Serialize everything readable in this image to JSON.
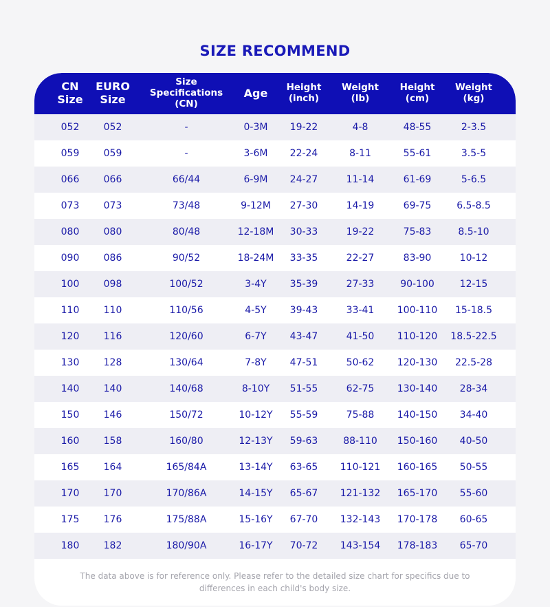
{
  "title": "SIZE RECOMMEND",
  "colors": {
    "header_bg": "#0f0fb5",
    "text": "#1a1aa8",
    "stripe": "#eeeef4"
  },
  "headers": [
    "CN\nSize",
    "EURO\nSize",
    "Size\nSpecifications\n(CN)",
    "Age",
    "Height\n(inch)",
    "Weight\n(lb)",
    "Height\n(cm)",
    "Weight\n(kg)"
  ],
  "rows": [
    [
      "052",
      "052",
      "-",
      "0-3M",
      "19-22",
      "4-8",
      "48-55",
      "2-3.5"
    ],
    [
      "059",
      "059",
      "-",
      "3-6M",
      "22-24",
      "8-11",
      "55-61",
      "3.5-5"
    ],
    [
      "066",
      "066",
      "66/44",
      "6-9M",
      "24-27",
      "11-14",
      "61-69",
      "5-6.5"
    ],
    [
      "073",
      "073",
      "73/48",
      "9-12M",
      "27-30",
      "14-19",
      "69-75",
      "6.5-8.5"
    ],
    [
      "080",
      "080",
      "80/48",
      "12-18M",
      "30-33",
      "19-22",
      "75-83",
      "8.5-10"
    ],
    [
      "090",
      "086",
      "90/52",
      "18-24M",
      "33-35",
      "22-27",
      "83-90",
      "10-12"
    ],
    [
      "100",
      "098",
      "100/52",
      "3-4Y",
      "35-39",
      "27-33",
      "90-100",
      "12-15"
    ],
    [
      "110",
      "110",
      "110/56",
      "4-5Y",
      "39-43",
      "33-41",
      "100-110",
      "15-18.5"
    ],
    [
      "120",
      "116",
      "120/60",
      "6-7Y",
      "43-47",
      "41-50",
      "110-120",
      "18.5-22.5"
    ],
    [
      "130",
      "128",
      "130/64",
      "7-8Y",
      "47-51",
      "50-62",
      "120-130",
      "22.5-28"
    ],
    [
      "140",
      "140",
      "140/68",
      "8-10Y",
      "51-55",
      "62-75",
      "130-140",
      "28-34"
    ],
    [
      "150",
      "146",
      "150/72",
      "10-12Y",
      "55-59",
      "75-88",
      "140-150",
      "34-40"
    ],
    [
      "160",
      "158",
      "160/80",
      "12-13Y",
      "59-63",
      "88-110",
      "150-160",
      "40-50"
    ],
    [
      "165",
      "164",
      "165/84A",
      "13-14Y",
      "63-65",
      "110-121",
      "160-165",
      "50-55"
    ],
    [
      "170",
      "170",
      "170/86A",
      "14-15Y",
      "65-67",
      "121-132",
      "165-170",
      "55-60"
    ],
    [
      "175",
      "176",
      "175/88A",
      "15-16Y",
      "67-70",
      "132-143",
      "170-178",
      "60-65"
    ],
    [
      "180",
      "182",
      "180/90A",
      "16-17Y",
      "70-72",
      "143-154",
      "178-183",
      "65-70"
    ]
  ],
  "note": {
    "line1": "The data above is for reference only. Please refer to the detailed size chart for specifics due to",
    "line2": "differences in each child's body size."
  }
}
